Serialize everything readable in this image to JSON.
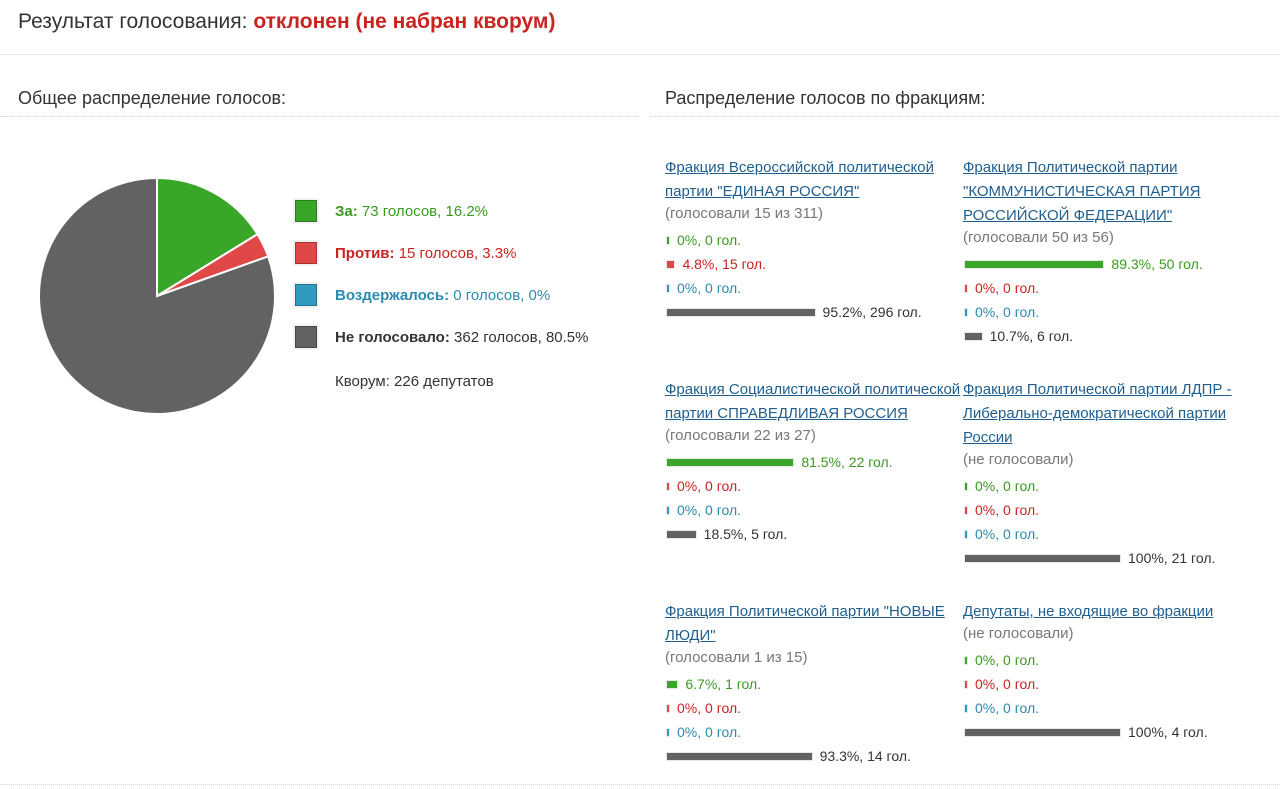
{
  "header": {
    "label": "Результат голосования:",
    "status": "отклонен (не набран кворум)"
  },
  "overall": {
    "title": "Общее распределение голосов:",
    "quorum": "Кворум: 226 депутатов"
  },
  "factions_section": {
    "title": "Распределение голосов по фракциям:"
  },
  "colors": {
    "for": "#3aa629",
    "against": "#e04848",
    "abstain": "#2f9bc0",
    "absent": "#626262",
    "for_text": "#3a9a20",
    "against_text": "#c9241f",
    "abstain_text": "#2a8bb0",
    "absent_text": "#333333"
  },
  "chart_data": [
    {
      "type": "pie",
      "slices": [
        {
          "key": "for",
          "label": "За:",
          "value": 73,
          "percent": 16.2,
          "text": "73 голосов, 16.2%"
        },
        {
          "key": "against",
          "label": "Против:",
          "value": 15,
          "percent": 3.3,
          "text": "15 голосов, 3.3%"
        },
        {
          "key": "abstain",
          "label": "Воздержалось:",
          "value": 0,
          "percent": 0,
          "text": "0 голосов, 0%"
        },
        {
          "key": "absent",
          "label": "Не голосовало:",
          "value": 362,
          "percent": 80.5,
          "text": "362 голосов, 80.5%"
        }
      ]
    },
    {
      "type": "bar",
      "factions": [
        {
          "name": "Фракция Всероссийской политической партии \"ЕДИНАЯ РОССИЯ\"",
          "voted": "(голосовали 15 из 311)",
          "rows": [
            {
              "key": "for",
              "percent": 0,
              "text": "0%, 0 гол."
            },
            {
              "key": "against",
              "percent": 4.8,
              "text": "4.8%, 15 гол."
            },
            {
              "key": "abstain",
              "percent": 0,
              "text": "0%, 0 гол."
            },
            {
              "key": "absent",
              "percent": 95.2,
              "text": "95.2%, 296 гол."
            }
          ]
        },
        {
          "name": "Фракция Политической партии \"КОММУНИСТИЧЕСКАЯ ПАРТИЯ РОССИЙСКОЙ ФЕДЕРАЦИИ\"",
          "voted": "(голосовали 50 из 56)",
          "rows": [
            {
              "key": "for",
              "percent": 89.3,
              "text": "89.3%, 50 гол."
            },
            {
              "key": "against",
              "percent": 0,
              "text": "0%, 0 гол."
            },
            {
              "key": "abstain",
              "percent": 0,
              "text": "0%, 0 гол."
            },
            {
              "key": "absent",
              "percent": 10.7,
              "text": "10.7%, 6 гол."
            }
          ]
        },
        {
          "name": "Фракция Социалистической политической партии СПРАВЕДЛИВАЯ РОССИЯ",
          "voted": "(голосовали 22 из 27)",
          "rows": [
            {
              "key": "for",
              "percent": 81.5,
              "text": "81.5%, 22 гол."
            },
            {
              "key": "against",
              "percent": 0,
              "text": "0%, 0 гол."
            },
            {
              "key": "abstain",
              "percent": 0,
              "text": "0%, 0 гол."
            },
            {
              "key": "absent",
              "percent": 18.5,
              "text": "18.5%, 5 гол."
            }
          ]
        },
        {
          "name": "Фракция Политической партии ЛДПР - Либерально-демократической партии России",
          "voted": "(не голосовали)",
          "rows": [
            {
              "key": "for",
              "percent": 0,
              "text": "0%, 0 гол."
            },
            {
              "key": "against",
              "percent": 0,
              "text": "0%, 0 гол."
            },
            {
              "key": "abstain",
              "percent": 0,
              "text": "0%, 0 гол."
            },
            {
              "key": "absent",
              "percent": 100,
              "text": "100%, 21 гол."
            }
          ]
        },
        {
          "name": "Фракция Политической партии \"НОВЫЕ ЛЮДИ\"",
          "voted": "(голосовали 1 из 15)",
          "rows": [
            {
              "key": "for",
              "percent": 6.7,
              "text": "6.7%, 1 гол."
            },
            {
              "key": "against",
              "percent": 0,
              "text": "0%, 0 гол."
            },
            {
              "key": "abstain",
              "percent": 0,
              "text": "0%, 0 гол."
            },
            {
              "key": "absent",
              "percent": 93.3,
              "text": "93.3%, 14 гол."
            }
          ]
        },
        {
          "name": "Депутаты, не входящие во фракции",
          "voted": "(не голосовали)",
          "rows": [
            {
              "key": "for",
              "percent": 0,
              "text": "0%, 0 гол."
            },
            {
              "key": "against",
              "percent": 0,
              "text": "0%, 0 гол."
            },
            {
              "key": "abstain",
              "percent": 0,
              "text": "0%, 0 гол."
            },
            {
              "key": "absent",
              "percent": 100,
              "text": "100%, 4 гол."
            }
          ]
        }
      ]
    }
  ]
}
